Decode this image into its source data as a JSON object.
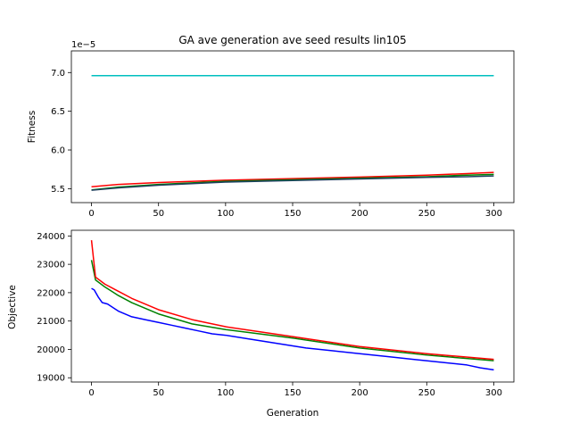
{
  "chart_data": [
    {
      "type": "line",
      "title": "GA ave generation ave seed results lin105",
      "xlabel": "",
      "ylabel": "Fitness",
      "offset_label": "1e−5",
      "xlim": [
        -15,
        315
      ],
      "ylim": [
        5.32,
        7.28
      ],
      "x_ticks": [
        0,
        50,
        100,
        150,
        200,
        250,
        300
      ],
      "x_tick_labels": [
        "0",
        "50",
        "100",
        "150",
        "200",
        "250",
        "300"
      ],
      "y_ticks": [
        5.5,
        6.0,
        6.5,
        7.0
      ],
      "y_tick_labels": [
        "5.5",
        "6.0",
        "6.5",
        "7.0"
      ],
      "series": [
        {
          "color": "#00bfbf",
          "x": [
            0,
            300
          ],
          "y": [
            6.96,
            6.96
          ]
        },
        {
          "color": "#ff0000",
          "x": [
            0,
            20,
            50,
            100,
            150,
            200,
            250,
            280,
            300
          ],
          "y": [
            5.525,
            5.555,
            5.58,
            5.61,
            5.63,
            5.65,
            5.675,
            5.695,
            5.71
          ]
        },
        {
          "color": "#008000",
          "x": [
            0,
            20,
            50,
            100,
            150,
            200,
            250,
            280,
            300
          ],
          "y": [
            5.485,
            5.52,
            5.555,
            5.595,
            5.615,
            5.635,
            5.655,
            5.675,
            5.685
          ]
        },
        {
          "color": "#1f3f5f",
          "x": [
            0,
            20,
            50,
            100,
            150,
            200,
            250,
            280,
            300
          ],
          "y": [
            5.48,
            5.51,
            5.545,
            5.585,
            5.605,
            5.625,
            5.645,
            5.655,
            5.665
          ]
        }
      ]
    },
    {
      "type": "line",
      "title": "",
      "xlabel": "Generation",
      "ylabel": "Objective",
      "xlim": [
        -15,
        315
      ],
      "ylim": [
        18850,
        24200
      ],
      "x_ticks": [
        0,
        50,
        100,
        150,
        200,
        250,
        300
      ],
      "x_tick_labels": [
        "0",
        "50",
        "100",
        "150",
        "200",
        "250",
        "300"
      ],
      "y_ticks": [
        19000,
        20000,
        21000,
        22000,
        23000,
        24000
      ],
      "y_tick_labels": [
        "19000",
        "20000",
        "21000",
        "22000",
        "23000",
        "24000"
      ],
      "series": [
        {
          "color": "#0000ff",
          "x": [
            0,
            2,
            5,
            8,
            12,
            20,
            30,
            40,
            50,
            60,
            70,
            80,
            90,
            100,
            120,
            140,
            160,
            180,
            200,
            220,
            240,
            260,
            280,
            290,
            300
          ],
          "y": [
            22150,
            22100,
            21850,
            21650,
            21600,
            21350,
            21150,
            21050,
            20950,
            20850,
            20750,
            20650,
            20550,
            20500,
            20350,
            20200,
            20050,
            19950,
            19850,
            19750,
            19650,
            19550,
            19450,
            19350,
            19280
          ]
        },
        {
          "color": "#008000",
          "x": [
            0,
            3,
            10,
            20,
            30,
            50,
            75,
            100,
            150,
            200,
            250,
            300
          ],
          "y": [
            23150,
            22450,
            22200,
            21900,
            21650,
            21250,
            20900,
            20700,
            20400,
            20050,
            19800,
            19600
          ]
        },
        {
          "color": "#ff0000",
          "x": [
            0,
            3,
            10,
            20,
            30,
            50,
            75,
            100,
            150,
            200,
            250,
            300
          ],
          "y": [
            23850,
            22550,
            22300,
            22050,
            21800,
            21400,
            21050,
            20800,
            20450,
            20100,
            19850,
            19650
          ]
        }
      ]
    }
  ]
}
